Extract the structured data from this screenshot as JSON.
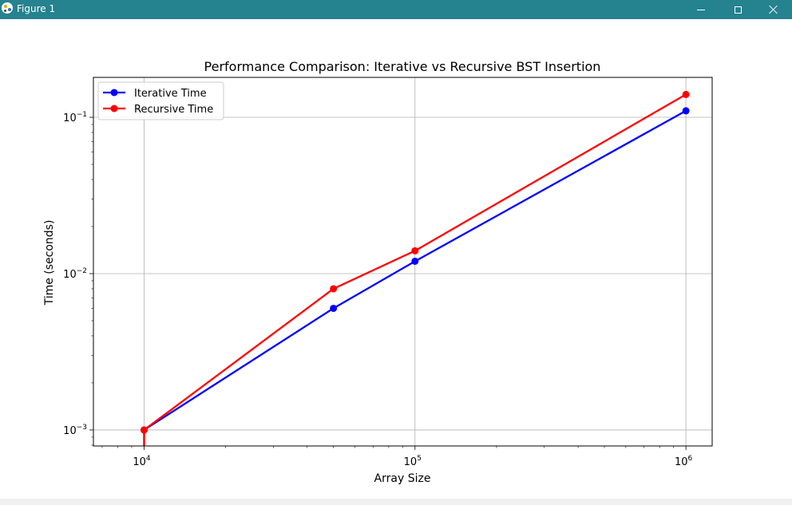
{
  "window": {
    "title": "Figure 1"
  },
  "chart_data": {
    "type": "line",
    "title": "Performance Comparison: Iterative vs Recursive BST Insertion",
    "xlabel": "Array Size",
    "ylabel": "Time (seconds)",
    "xscale": "log",
    "yscale": "log",
    "xlim": [
      6500,
      1250000
    ],
    "ylim": [
      0.00079,
      0.18
    ],
    "grid": true,
    "legend_position": "upper left",
    "x": [
      10000,
      50000,
      100000,
      1000000
    ],
    "series": [
      {
        "name": "Iterative Time",
        "color": "#0000ff",
        "values": [
          0.001,
          0.006,
          0.012,
          0.11
        ]
      },
      {
        "name": "Recursive Time",
        "color": "#ff0000",
        "values": [
          0.001,
          0.008,
          0.014,
          0.14
        ]
      }
    ],
    "x_ticks": [
      {
        "value": 10000,
        "base": "10",
        "exp": "4"
      },
      {
        "value": 100000,
        "base": "10",
        "exp": "5"
      },
      {
        "value": 1000000,
        "base": "10",
        "exp": "6"
      }
    ],
    "y_ticks": [
      {
        "value": 0.001,
        "base": "10",
        "exp": "−3"
      },
      {
        "value": 0.01,
        "base": "10",
        "exp": "−2"
      },
      {
        "value": 0.1,
        "base": "10",
        "exp": "−1"
      }
    ]
  }
}
